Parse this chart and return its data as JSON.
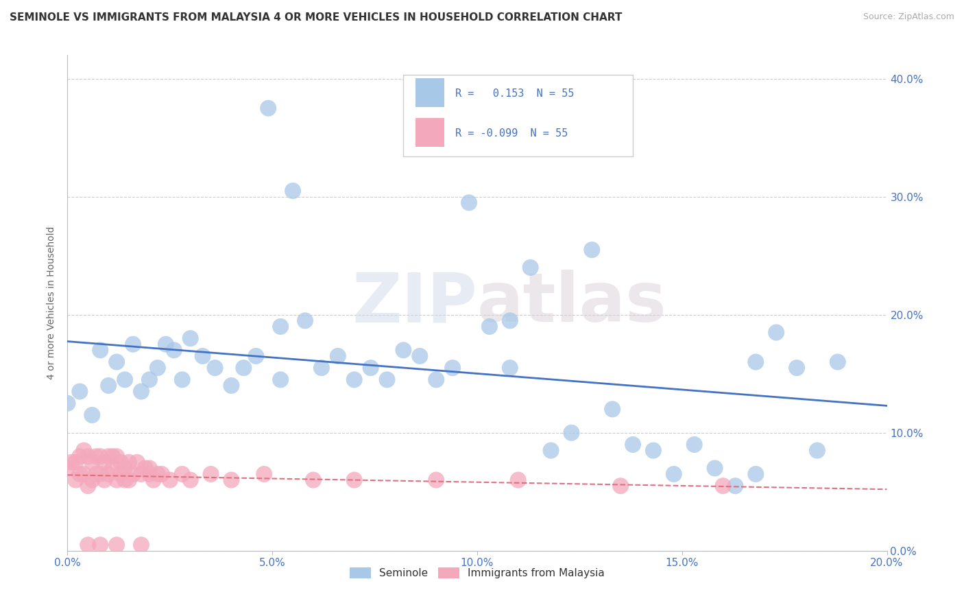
{
  "title": "SEMINOLE VS IMMIGRANTS FROM MALAYSIA 4 OR MORE VEHICLES IN HOUSEHOLD CORRELATION CHART",
  "source": "Source: ZipAtlas.com",
  "ylabel": "4 or more Vehicles in Household",
  "legend_bottom_left": "Seminole",
  "legend_bottom_right": "Immigrants from Malaysia",
  "r_seminole": 0.153,
  "n_seminole": 55,
  "r_malaysia": -0.099,
  "n_malaysia": 55,
  "seminole_color": "#a8c8e8",
  "malaysia_color": "#f4a8bc",
  "seminole_line_color": "#4472c4",
  "malaysia_line_color": "#e07080",
  "xmin": 0.0,
  "xmax": 0.2,
  "ymin": 0.0,
  "ymax": 0.42,
  "seminole_x": [
    0.0,
    0.003,
    0.006,
    0.008,
    0.01,
    0.012,
    0.014,
    0.016,
    0.018,
    0.02,
    0.022,
    0.024,
    0.026,
    0.028,
    0.03,
    0.033,
    0.036,
    0.04,
    0.043,
    0.046,
    0.049,
    0.052,
    0.055,
    0.058,
    0.062,
    0.066,
    0.07,
    0.074,
    0.078,
    0.082,
    0.086,
    0.09,
    0.094,
    0.098,
    0.103,
    0.108,
    0.113,
    0.118,
    0.123,
    0.128,
    0.133,
    0.138,
    0.143,
    0.148,
    0.153,
    0.158,
    0.163,
    0.168,
    0.173,
    0.178,
    0.183,
    0.188,
    0.052,
    0.108,
    0.168
  ],
  "seminole_y": [
    0.125,
    0.135,
    0.115,
    0.17,
    0.14,
    0.16,
    0.145,
    0.175,
    0.135,
    0.145,
    0.155,
    0.175,
    0.17,
    0.145,
    0.18,
    0.165,
    0.155,
    0.14,
    0.155,
    0.165,
    0.375,
    0.145,
    0.305,
    0.195,
    0.155,
    0.165,
    0.145,
    0.155,
    0.145,
    0.17,
    0.165,
    0.145,
    0.155,
    0.295,
    0.19,
    0.155,
    0.24,
    0.085,
    0.1,
    0.255,
    0.12,
    0.09,
    0.085,
    0.065,
    0.09,
    0.07,
    0.055,
    0.16,
    0.185,
    0.155,
    0.085,
    0.16,
    0.19,
    0.195,
    0.065
  ],
  "malaysia_x": [
    0.0,
    0.001,
    0.002,
    0.002,
    0.003,
    0.003,
    0.004,
    0.004,
    0.005,
    0.005,
    0.006,
    0.006,
    0.007,
    0.007,
    0.008,
    0.008,
    0.009,
    0.009,
    0.01,
    0.01,
    0.011,
    0.011,
    0.012,
    0.012,
    0.013,
    0.013,
    0.014,
    0.014,
    0.015,
    0.015,
    0.016,
    0.017,
    0.018,
    0.019,
    0.02,
    0.02,
    0.021,
    0.022,
    0.023,
    0.025,
    0.028,
    0.03,
    0.035,
    0.04,
    0.048,
    0.06,
    0.07,
    0.09,
    0.11,
    0.135,
    0.16,
    0.005,
    0.008,
    0.012,
    0.018
  ],
  "malaysia_y": [
    0.07,
    0.075,
    0.06,
    0.075,
    0.065,
    0.08,
    0.085,
    0.065,
    0.08,
    0.055,
    0.06,
    0.075,
    0.065,
    0.08,
    0.08,
    0.065,
    0.06,
    0.075,
    0.08,
    0.065,
    0.07,
    0.08,
    0.06,
    0.08,
    0.065,
    0.075,
    0.07,
    0.06,
    0.075,
    0.06,
    0.065,
    0.075,
    0.065,
    0.07,
    0.065,
    0.07,
    0.06,
    0.065,
    0.065,
    0.06,
    0.065,
    0.06,
    0.065,
    0.06,
    0.065,
    0.06,
    0.06,
    0.06,
    0.06,
    0.055,
    0.055,
    0.005,
    0.005,
    0.005,
    0.005
  ]
}
